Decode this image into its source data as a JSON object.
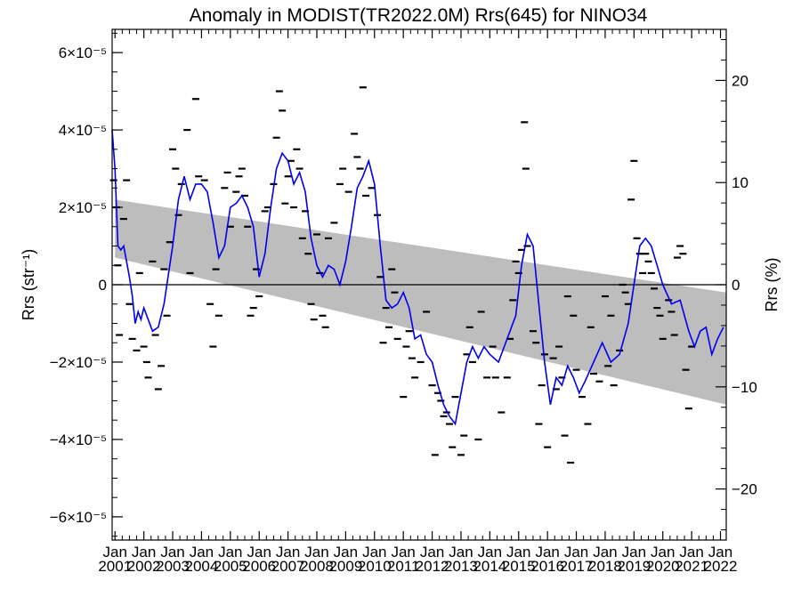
{
  "chart_data": {
    "type": "line",
    "title": "Anomaly in MODIST(TR2022.0M) Rrs(645) for NINO34",
    "ylabel_left": "Rrs (str⁻¹)",
    "ylabel_right": "Rrs (%)",
    "x_range": [
      2000.9,
      2022.2
    ],
    "ylim_left": [
      -6.6e-05,
      6.6e-05
    ],
    "ylim_right": [
      -25,
      25
    ],
    "left_ticks": [
      {
        "value": 6e-05,
        "label": "6×10⁻⁵"
      },
      {
        "value": 4e-05,
        "label": "4×10⁻⁵"
      },
      {
        "value": 2e-05,
        "label": "2×10⁻⁵"
      },
      {
        "value": 0,
        "label": "0"
      },
      {
        "value": -2e-05,
        "label": "−2×10⁻⁵"
      },
      {
        "value": -4e-05,
        "label": "−4×10⁻⁵"
      },
      {
        "value": -6e-05,
        "label": "−6×10⁻⁵"
      }
    ],
    "right_ticks": [
      {
        "value": 20,
        "label": "20"
      },
      {
        "value": 10,
        "label": "10"
      },
      {
        "value": 0,
        "label": "0"
      },
      {
        "value": -10,
        "label": "−10"
      },
      {
        "value": -20,
        "label": "−20"
      }
    ],
    "x_ticks": [
      {
        "value": 2001,
        "month": "Jan",
        "year": "2001"
      },
      {
        "value": 2002,
        "month": "Jan",
        "year": "2002"
      },
      {
        "value": 2003,
        "month": "Jan",
        "year": "2003"
      },
      {
        "value": 2004,
        "month": "Jan",
        "year": "2004"
      },
      {
        "value": 2005,
        "month": "Jan",
        "year": "2005"
      },
      {
        "value": 2006,
        "month": "Jan",
        "year": "2006"
      },
      {
        "value": 2007,
        "month": "Jan",
        "year": "2007"
      },
      {
        "value": 2008,
        "month": "Jan",
        "year": "2008"
      },
      {
        "value": 2009,
        "month": "Jan",
        "year": "2009"
      },
      {
        "value": 2010,
        "month": "Jan",
        "year": "2010"
      },
      {
        "value": 2011,
        "month": "Jan",
        "year": "2011"
      },
      {
        "value": 2012,
        "month": "Jan",
        "year": "2012"
      },
      {
        "value": 2013,
        "month": "Jan",
        "year": "2013"
      },
      {
        "value": 2014,
        "month": "Jan",
        "year": "2014"
      },
      {
        "value": 2015,
        "month": "Jan",
        "year": "2015"
      },
      {
        "value": 2016,
        "month": "Jan",
        "year": "2016"
      },
      {
        "value": 2017,
        "month": "Jan",
        "year": "2017"
      },
      {
        "value": 2018,
        "month": "Jan",
        "year": "2018"
      },
      {
        "value": 2019,
        "month": "Jan",
        "year": "2019"
      },
      {
        "value": 2020,
        "month": "Jan",
        "year": "2020"
      },
      {
        "value": 2021,
        "month": "Jan",
        "year": "2021"
      },
      {
        "value": 2022,
        "month": "Jan",
        "year": "2022"
      }
    ],
    "trend_band": {
      "x": [
        2001.0,
        2022.2
      ],
      "upper": [
        2.2e-05,
        -2e-06
      ],
      "lower": [
        7e-06,
        -3.1e-05
      ]
    },
    "smoothed_line": {
      "color": "#0000ee",
      "points": [
        [
          2000.9,
          4e-05
        ],
        [
          2001.0,
          3e-05
        ],
        [
          2001.1,
          1e-05
        ],
        [
          2001.2,
          9e-06
        ],
        [
          2001.3,
          1e-05
        ],
        [
          2001.5,
          2e-06
        ],
        [
          2001.6,
          -3e-06
        ],
        [
          2001.7,
          -1e-05
        ],
        [
          2001.8,
          -7e-06
        ],
        [
          2001.9,
          -9e-06
        ],
        [
          2002.0,
          -6e-06
        ],
        [
          2002.1,
          -8e-06
        ],
        [
          2002.3,
          -1.2e-05
        ],
        [
          2002.5,
          -1.1e-05
        ],
        [
          2002.7,
          -5e-06
        ],
        [
          2002.8,
          0.0
        ],
        [
          2003.0,
          1e-05
        ],
        [
          2003.2,
          2.2e-05
        ],
        [
          2003.4,
          2.8e-05
        ],
        [
          2003.6,
          2.2e-05
        ],
        [
          2003.8,
          2.6e-05
        ],
        [
          2004.0,
          2.6e-05
        ],
        [
          2004.2,
          2.4e-05
        ],
        [
          2004.4,
          1.6e-05
        ],
        [
          2004.6,
          7e-06
        ],
        [
          2004.8,
          1e-05
        ],
        [
          2005.0,
          2e-05
        ],
        [
          2005.2,
          2.1e-05
        ],
        [
          2005.4,
          2.3e-05
        ],
        [
          2005.6,
          2e-05
        ],
        [
          2005.8,
          1.5e-05
        ],
        [
          2006.0,
          2e-06
        ],
        [
          2006.2,
          8e-06
        ],
        [
          2006.4,
          2e-05
        ],
        [
          2006.6,
          3e-05
        ],
        [
          2006.8,
          3.4e-05
        ],
        [
          2007.0,
          3.2e-05
        ],
        [
          2007.2,
          2.6e-05
        ],
        [
          2007.4,
          2.9e-05
        ],
        [
          2007.6,
          2.4e-05
        ],
        [
          2007.8,
          1.2e-05
        ],
        [
          2008.0,
          5e-06
        ],
        [
          2008.2,
          2e-06
        ],
        [
          2008.4,
          5e-06
        ],
        [
          2008.6,
          4e-06
        ],
        [
          2008.8,
          0.0
        ],
        [
          2009.0,
          6e-06
        ],
        [
          2009.2,
          1.5e-05
        ],
        [
          2009.4,
          2.5e-05
        ],
        [
          2009.6,
          2.8e-05
        ],
        [
          2009.8,
          3.2e-05
        ],
        [
          2010.0,
          2.6e-05
        ],
        [
          2010.2,
          1e-05
        ],
        [
          2010.4,
          -4e-06
        ],
        [
          2010.6,
          -6e-06
        ],
        [
          2010.8,
          -5e-06
        ],
        [
          2011.0,
          -2e-06
        ],
        [
          2011.2,
          -6e-06
        ],
        [
          2011.4,
          -1.4e-05
        ],
        [
          2011.6,
          -1.3e-05
        ],
        [
          2011.8,
          -1.8e-05
        ],
        [
          2012.0,
          -2e-05
        ],
        [
          2012.2,
          -2.6e-05
        ],
        [
          2012.4,
          -3.1e-05
        ],
        [
          2012.6,
          -3.4e-05
        ],
        [
          2012.8,
          -3.6e-05
        ],
        [
          2013.0,
          -2.8e-05
        ],
        [
          2013.2,
          -2e-05
        ],
        [
          2013.4,
          -1.6e-05
        ],
        [
          2013.6,
          -1.9e-05
        ],
        [
          2013.8,
          -1.6e-05
        ],
        [
          2014.0,
          -1.8e-05
        ],
        [
          2014.3,
          -2e-05
        ],
        [
          2014.6,
          -1.4e-05
        ],
        [
          2014.9,
          -8e-06
        ],
        [
          2015.1,
          5e-06
        ],
        [
          2015.3,
          1.3e-05
        ],
        [
          2015.5,
          1e-05
        ],
        [
          2015.7,
          -5e-06
        ],
        [
          2015.9,
          -2e-05
        ],
        [
          2016.1,
          -3.1e-05
        ],
        [
          2016.3,
          -2.4e-05
        ],
        [
          2016.5,
          -2.6e-05
        ],
        [
          2016.7,
          -2.1e-05
        ],
        [
          2016.9,
          -2.4e-05
        ],
        [
          2017.1,
          -2.8e-05
        ],
        [
          2017.3,
          -2.5e-05
        ],
        [
          2017.6,
          -2e-05
        ],
        [
          2017.9,
          -1.5e-05
        ],
        [
          2018.2,
          -2e-05
        ],
        [
          2018.5,
          -1.8e-05
        ],
        [
          2018.8,
          -1e-05
        ],
        [
          2019.0,
          0.0
        ],
        [
          2019.2,
          1e-05
        ],
        [
          2019.4,
          1.2e-05
        ],
        [
          2019.6,
          1e-05
        ],
        [
          2019.8,
          5e-06
        ],
        [
          2020.0,
          0.0
        ],
        [
          2020.3,
          -5e-06
        ],
        [
          2020.6,
          -4e-06
        ],
        [
          2020.9,
          -1.2e-05
        ],
        [
          2021.1,
          -1.6e-05
        ],
        [
          2021.3,
          -1.2e-05
        ],
        [
          2021.5,
          -1.1e-05
        ],
        [
          2021.7,
          -1.8e-05
        ],
        [
          2021.9,
          -1.4e-05
        ],
        [
          2022.1,
          -1.1e-05
        ]
      ]
    },
    "monthly_markers": {
      "color": "#000000",
      "points": [
        [
          2000.95,
          2.7e-05
        ],
        [
          2001.05,
          2e-05
        ],
        [
          2001.1,
          5e-06
        ],
        [
          2001.15,
          -1.3e-05
        ],
        [
          2001.3,
          1.7e-05
        ],
        [
          2001.4,
          2.7e-05
        ],
        [
          2001.5,
          -5e-06
        ],
        [
          2001.6,
          -1.4e-05
        ],
        [
          2001.75,
          -1.7e-05
        ],
        [
          2001.85,
          3e-06
        ],
        [
          2002.0,
          -1.6e-05
        ],
        [
          2002.1,
          -2e-05
        ],
        [
          2002.15,
          -2.4e-05
        ],
        [
          2002.3,
          6e-06
        ],
        [
          2002.4,
          -1.3e-05
        ],
        [
          2002.5,
          -2.7e-05
        ],
        [
          2002.6,
          -2.1e-05
        ],
        [
          2002.7,
          4e-06
        ],
        [
          2002.8,
          -8e-06
        ],
        [
          2002.9,
          1.1e-05
        ],
        [
          2003.0,
          3.5e-05
        ],
        [
          2003.1,
          3e-05
        ],
        [
          2003.2,
          1.8e-05
        ],
        [
          2003.3,
          2.6e-05
        ],
        [
          2003.5,
          4e-05
        ],
        [
          2003.6,
          3e-06
        ],
        [
          2003.8,
          4.8e-05
        ],
        [
          2003.9,
          2.8e-05
        ],
        [
          2004.1,
          2.7e-05
        ],
        [
          2004.3,
          -5e-06
        ],
        [
          2004.4,
          -1.6e-05
        ],
        [
          2004.5,
          4e-06
        ],
        [
          2004.6,
          -8e-06
        ],
        [
          2004.8,
          2.5e-05
        ],
        [
          2004.9,
          2.9e-05
        ],
        [
          2005.0,
          1.5e-05
        ],
        [
          2005.2,
          2.4e-05
        ],
        [
          2005.3,
          2.8e-05
        ],
        [
          2005.4,
          3e-05
        ],
        [
          2005.5,
          2.3e-05
        ],
        [
          2005.6,
          1.5e-05
        ],
        [
          2005.7,
          -8e-06
        ],
        [
          2005.8,
          -6e-06
        ],
        [
          2005.9,
          4e-06
        ],
        [
          2006.0,
          -3e-06
        ],
        [
          2006.2,
          1.9e-05
        ],
        [
          2006.3,
          2e-05
        ],
        [
          2006.5,
          2.6e-05
        ],
        [
          2006.6,
          3.8e-05
        ],
        [
          2006.7,
          5e-05
        ],
        [
          2006.8,
          4.5e-05
        ],
        [
          2006.9,
          2.1e-05
        ],
        [
          2007.0,
          2.8e-05
        ],
        [
          2007.1,
          3.2e-05
        ],
        [
          2007.2,
          2e-05
        ],
        [
          2007.3,
          3.5e-05
        ],
        [
          2007.4,
          3e-05
        ],
        [
          2007.5,
          1.2e-05
        ],
        [
          2007.6,
          1.9e-05
        ],
        [
          2007.7,
          8e-06
        ],
        [
          2007.8,
          -5e-06
        ],
        [
          2007.9,
          -9e-06
        ],
        [
          2008.0,
          1.3e-05
        ],
        [
          2008.1,
          3e-06
        ],
        [
          2008.2,
          -8e-06
        ],
        [
          2008.3,
          -1.1e-05
        ],
        [
          2008.4,
          1.2e-05
        ],
        [
          2008.6,
          1.6e-05
        ],
        [
          2008.8,
          2.6e-05
        ],
        [
          2008.9,
          3e-05
        ],
        [
          2009.1,
          2.4e-05
        ],
        [
          2009.3,
          3.9e-05
        ],
        [
          2009.4,
          3.3e-05
        ],
        [
          2009.5,
          3e-05
        ],
        [
          2009.6,
          5.1e-05
        ],
        [
          2009.7,
          2.3e-05
        ],
        [
          2009.9,
          2.5e-05
        ],
        [
          2010.1,
          1.8e-05
        ],
        [
          2010.2,
          2e-06
        ],
        [
          2010.3,
          -1.5e-05
        ],
        [
          2010.4,
          -6e-06
        ],
        [
          2010.5,
          -1.1e-05
        ],
        [
          2010.6,
          4e-06
        ],
        [
          2010.7,
          -2e-06
        ],
        [
          2010.8,
          -1.4e-05
        ],
        [
          2011.0,
          -2.9e-05
        ],
        [
          2011.1,
          -1.6e-05
        ],
        [
          2011.2,
          -1.2e-05
        ],
        [
          2011.3,
          -1.9e-05
        ],
        [
          2011.4,
          -2.4e-05
        ],
        [
          2011.6,
          -2e-05
        ],
        [
          2011.8,
          -7e-06
        ],
        [
          2012.0,
          -2.6e-05
        ],
        [
          2012.1,
          -4.4e-05
        ],
        [
          2012.2,
          -2.8e-05
        ],
        [
          2012.3,
          -3e-05
        ],
        [
          2012.4,
          -3.4e-05
        ],
        [
          2012.5,
          -3.3e-05
        ],
        [
          2012.6,
          -3.6e-05
        ],
        [
          2012.7,
          -4.2e-05
        ],
        [
          2012.8,
          -2.9e-05
        ],
        [
          2013.0,
          -4.4e-05
        ],
        [
          2013.1,
          -3.9e-05
        ],
        [
          2013.2,
          -1.8e-05
        ],
        [
          2013.3,
          -1.1e-05
        ],
        [
          2013.4,
          -2e-05
        ],
        [
          2013.6,
          -4e-05
        ],
        [
          2013.7,
          -7e-06
        ],
        [
          2013.9,
          -2.4e-05
        ],
        [
          2014.1,
          -1.6e-05
        ],
        [
          2014.2,
          -2.4e-05
        ],
        [
          2014.4,
          -3.3e-05
        ],
        [
          2014.6,
          -2.4e-05
        ],
        [
          2014.7,
          -1.4e-05
        ],
        [
          2014.8,
          -4e-06
        ],
        [
          2014.9,
          6e-06
        ],
        [
          2015.0,
          3e-06
        ],
        [
          2015.1,
          9e-06
        ],
        [
          2015.2,
          4.2e-05
        ],
        [
          2015.25,
          3e-05
        ],
        [
          2015.3,
          1e-05
        ],
        [
          2015.5,
          -1.2e-05
        ],
        [
          2015.6,
          -1.5e-05
        ],
        [
          2015.7,
          -3.6e-05
        ],
        [
          2015.8,
          -2.6e-05
        ],
        [
          2015.9,
          -1.8e-05
        ],
        [
          2016.0,
          -4.2e-05
        ],
        [
          2016.2,
          -1.9e-05
        ],
        [
          2016.3,
          -2.7e-05
        ],
        [
          2016.4,
          -1.6e-05
        ],
        [
          2016.5,
          -2.4e-05
        ],
        [
          2016.6,
          -3.9e-05
        ],
        [
          2016.7,
          -3e-06
        ],
        [
          2016.8,
          -4.6e-05
        ],
        [
          2016.9,
          -8e-06
        ],
        [
          2017.0,
          -2.2e-05
        ],
        [
          2017.2,
          -2.9e-05
        ],
        [
          2017.4,
          -3.6e-05
        ],
        [
          2017.5,
          -1.1e-05
        ],
        [
          2017.6,
          -2.3e-05
        ],
        [
          2017.8,
          -2.5e-05
        ],
        [
          2018.0,
          -3e-06
        ],
        [
          2018.1,
          -2.1e-05
        ],
        [
          2018.2,
          -8e-06
        ],
        [
          2018.3,
          -2.6e-05
        ],
        [
          2018.5,
          -1.7e-05
        ],
        [
          2018.6,
          0.0
        ],
        [
          2018.7,
          -2e-06
        ],
        [
          2018.8,
          -5e-06
        ],
        [
          2018.9,
          2.2e-05
        ],
        [
          2019.0,
          3.2e-05
        ],
        [
          2019.1,
          1.2e-05
        ],
        [
          2019.2,
          8e-06
        ],
        [
          2019.3,
          3e-06
        ],
        [
          2019.4,
          8e-06
        ],
        [
          2019.5,
          6e-06
        ],
        [
          2019.6,
          3e-06
        ],
        [
          2019.7,
          -1e-06
        ],
        [
          2019.8,
          -6e-06
        ],
        [
          2019.9,
          -8e-06
        ],
        [
          2020.0,
          -1.4e-05
        ],
        [
          2020.2,
          -4e-06
        ],
        [
          2020.3,
          -7e-06
        ],
        [
          2020.4,
          -1.3e-05
        ],
        [
          2020.5,
          7e-06
        ],
        [
          2020.6,
          1e-05
        ],
        [
          2020.7,
          8e-06
        ],
        [
          2020.8,
          -2.2e-05
        ],
        [
          2020.9,
          -3.2e-05
        ],
        [
          2021.0,
          -1.6e-05
        ]
      ]
    }
  }
}
